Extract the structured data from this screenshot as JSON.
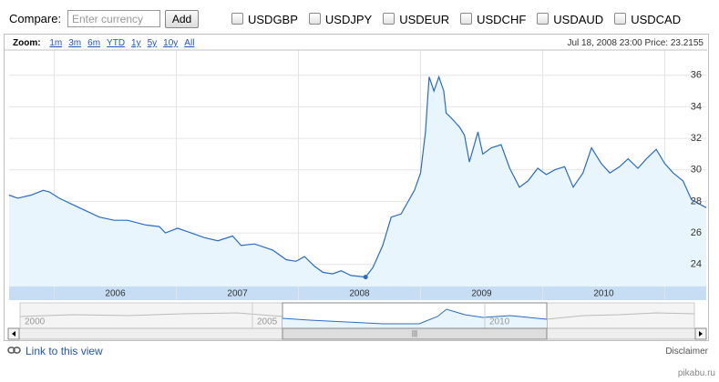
{
  "toolbar": {
    "compare_label": "Compare:",
    "input_placeholder": "Enter currency",
    "add_button": "Add",
    "currencies": [
      "USDGBP",
      "USDJPY",
      "USDEUR",
      "USDCHF",
      "USDAUD",
      "USDCAD"
    ]
  },
  "header": {
    "zoom_label": "Zoom:",
    "zoom_options": [
      "1m",
      "3m",
      "6m",
      "YTD",
      "1y",
      "5y",
      "10y",
      "All"
    ],
    "status": "Jul 18, 2008 23:00 Price: 23.2155"
  },
  "chart_data": {
    "type": "line",
    "x": [
      2005.63,
      2005.7,
      2005.81,
      2005.91,
      2005.96,
      2006.04,
      2006.15,
      2006.26,
      2006.37,
      2006.49,
      2006.6,
      2006.75,
      2006.86,
      2006.91,
      2007.01,
      2007.12,
      2007.23,
      2007.34,
      2007.46,
      2007.53,
      2007.64,
      2007.79,
      2007.9,
      2007.98,
      2008.05,
      2008.13,
      2008.2,
      2008.28,
      2008.35,
      2008.43,
      2008.55,
      2008.61,
      2008.69,
      2008.76,
      2008.84,
      2008.95,
      2009.0,
      2009.04,
      2009.07,
      2009.11,
      2009.15,
      2009.19,
      2009.21,
      2009.25,
      2009.32,
      2009.36,
      2009.4,
      2009.47,
      2009.51,
      2009.58,
      2009.66,
      2009.73,
      2009.81,
      2009.88,
      2009.96,
      2010.03,
      2010.1,
      2010.18,
      2010.25,
      2010.33,
      2010.4,
      2010.48,
      2010.55,
      2010.63,
      2010.7,
      2010.78,
      2010.85,
      2010.93,
      2011.0,
      2011.07,
      2011.15,
      2011.22,
      2011.34
    ],
    "values": [
      28.4,
      28.2,
      28.4,
      28.7,
      28.6,
      28.2,
      27.8,
      27.4,
      27.0,
      26.8,
      26.8,
      26.5,
      26.4,
      26.0,
      26.3,
      26.0,
      25.7,
      25.5,
      25.8,
      25.2,
      25.3,
      24.9,
      24.3,
      24.2,
      24.5,
      23.9,
      23.5,
      23.4,
      23.6,
      23.3,
      23.2,
      23.8,
      25.2,
      27.0,
      27.2,
      28.7,
      29.8,
      32.4,
      35.9,
      35.0,
      35.9,
      35.0,
      33.6,
      33.3,
      32.7,
      32.2,
      30.5,
      32.4,
      31.0,
      31.4,
      31.6,
      30.1,
      28.9,
      29.3,
      30.1,
      29.7,
      30.0,
      30.2,
      28.9,
      29.8,
      31.4,
      30.4,
      29.8,
      30.2,
      30.7,
      30.1,
      30.7,
      31.3,
      30.4,
      29.8,
      29.3,
      28.1,
      27.6
    ],
    "highlight": {
      "x": 2008.55,
      "y": 23.2
    },
    "color": "#2a6cc4",
    "area_color": "#e9f5fd",
    "xlim": [
      2005.63,
      2011.34
    ],
    "xticks": [
      2006,
      2007,
      2008,
      2009,
      2010
    ],
    "ylim": [
      22.6,
      37.6
    ],
    "yticks": [
      24,
      26,
      28,
      30,
      32,
      34,
      36
    ],
    "grid": true
  },
  "navigator": {
    "labels": [
      "2000",
      "2005",
      "2010"
    ]
  },
  "footer": {
    "link": "Link to this view",
    "disclaimer": "Disclaimer",
    "watermark": "pikabu.ru"
  }
}
